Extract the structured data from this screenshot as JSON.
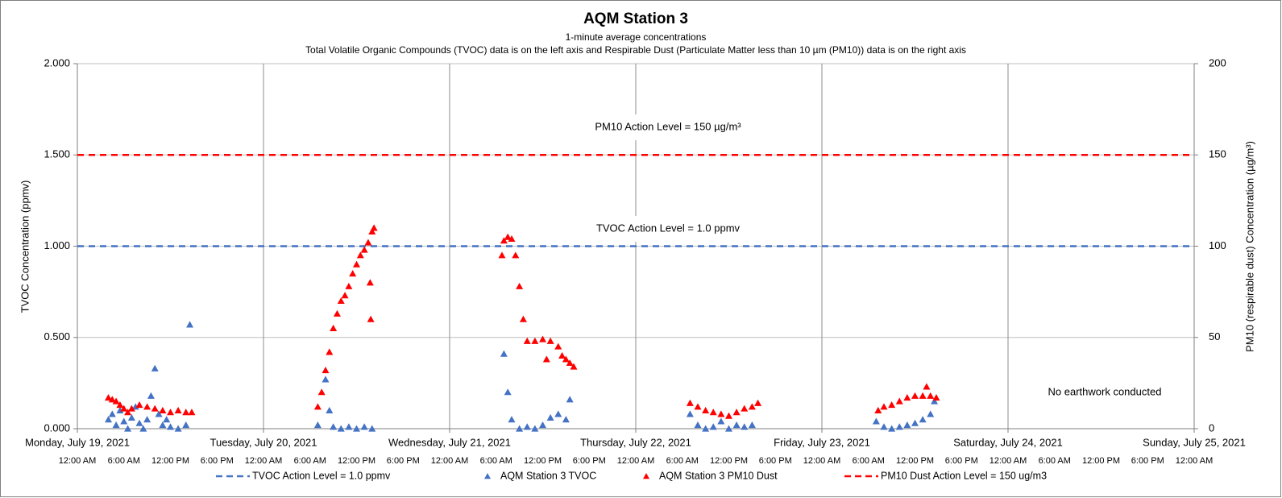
{
  "chart_data": {
    "type": "scatter",
    "title": "AQM Station 3",
    "subtitle": "1-minute average concentrations",
    "subtitle2": "Total Volatile Organic Compounds (TVOC) data is on the left axis and Respirable Dust (Particulate Matter less than 10 µm (PM10)) data is on the right axis",
    "y_label": "TVOC Concentration (ppmv)",
    "y2_label": "PM10 (respirable dust) Concentration (µg/m³)",
    "annotations": [
      "PM10 Action Level = 150 µg/m³",
      "TVOC Action Level = 1.0 ppmv",
      "No earthwork conducted"
    ],
    "xlim": [
      "2021-07-19T00:00",
      "2021-07-25T00:00"
    ],
    "xticks": [
      {
        "value": "2021-07-19T00:00",
        "label": "Monday, July 19, 2021"
      },
      {
        "value": "2021-07-20T00:00",
        "label": "Tuesday, July 20, 2021"
      },
      {
        "value": "2021-07-21T00:00",
        "label": "Wednesday, July 21, 2021"
      },
      {
        "value": "2021-07-22T00:00",
        "label": "Thursday, July 22, 2021"
      },
      {
        "value": "2021-07-23T00:00",
        "label": "Friday, July 23, 2021"
      },
      {
        "value": "2021-07-24T00:00",
        "label": "Saturday, July 24, 2021"
      },
      {
        "value": "2021-07-25T00:00",
        "label": "Sunday, July 25, 2021"
      }
    ],
    "xticks_minor": [
      {
        "value": "2021-07-19T00:00",
        "label": "12:00 AM"
      },
      {
        "value": "2021-07-19T06:00",
        "label": "6:00 AM"
      },
      {
        "value": "2021-07-19T12:00",
        "label": "12:00 PM"
      },
      {
        "value": "2021-07-19T18:00",
        "label": "6:00 PM"
      },
      {
        "value": "2021-07-20T00:00",
        "label": "12:00 AM"
      },
      {
        "value": "2021-07-20T06:00",
        "label": "6:00 AM"
      },
      {
        "value": "2021-07-20T12:00",
        "label": "12:00 PM"
      },
      {
        "value": "2021-07-20T18:00",
        "label": "6:00 PM"
      },
      {
        "value": "2021-07-21T00:00",
        "label": "12:00 AM"
      },
      {
        "value": "2021-07-21T06:00",
        "label": "6:00 AM"
      },
      {
        "value": "2021-07-21T12:00",
        "label": "12:00 PM"
      },
      {
        "value": "2021-07-21T18:00",
        "label": "6:00 PM"
      },
      {
        "value": "2021-07-22T00:00",
        "label": "12:00 AM"
      },
      {
        "value": "2021-07-22T06:00",
        "label": "6:00 AM"
      },
      {
        "value": "2021-07-22T12:00",
        "label": "12:00 PM"
      },
      {
        "value": "2021-07-22T18:00",
        "label": "6:00 PM"
      },
      {
        "value": "2021-07-23T00:00",
        "label": "12:00 AM"
      },
      {
        "value": "2021-07-23T06:00",
        "label": "6:00 AM"
      },
      {
        "value": "2021-07-23T12:00",
        "label": "12:00 PM"
      },
      {
        "value": "2021-07-23T18:00",
        "label": "6:00 PM"
      },
      {
        "value": "2021-07-24T00:00",
        "label": "12:00 AM"
      },
      {
        "value": "2021-07-24T06:00",
        "label": "6:00 AM"
      },
      {
        "value": "2021-07-24T12:00",
        "label": "12:00 PM"
      },
      {
        "value": "2021-07-24T18:00",
        "label": "6:00 PM"
      },
      {
        "value": "2021-07-25T00:00",
        "label": "12:00 AM"
      }
    ],
    "ylim": [
      0,
      2
    ],
    "yticks": [
      {
        "value": 0,
        "label": "0.000"
      },
      {
        "value": 0.5,
        "label": "0.500"
      },
      {
        "value": 1,
        "label": "1.000"
      },
      {
        "value": 1.5,
        "label": "1.500"
      },
      {
        "value": 2,
        "label": "2.000"
      }
    ],
    "y2lim": [
      0,
      200
    ],
    "y2ticks": [
      0,
      50,
      100,
      150,
      200
    ],
    "grid": true,
    "legend": "bottom",
    "series": [
      {
        "name": "TVOC Action Level = 1.0 ppmv",
        "kind": "hline",
        "color": "#4472c4",
        "value": 1.0
      },
      {
        "name": "AQM Station 3 TVOC",
        "color": "#4472c4",
        "x": [
          "2021-07-19T04:00",
          "2021-07-19T04:30",
          "2021-07-19T05:00",
          "2021-07-19T05:30",
          "2021-07-19T06:00",
          "2021-07-19T06:30",
          "2021-07-19T07:00",
          "2021-07-19T07:30",
          "2021-07-19T08:00",
          "2021-07-19T08:30",
          "2021-07-19T09:00",
          "2021-07-19T09:30",
          "2021-07-19T10:00",
          "2021-07-19T10:30",
          "2021-07-19T11:00",
          "2021-07-19T11:30",
          "2021-07-19T12:00",
          "2021-07-19T13:00",
          "2021-07-19T14:00",
          "2021-07-19T14:30",
          "2021-07-20T07:00",
          "2021-07-20T08:00",
          "2021-07-20T08:30",
          "2021-07-20T09:00",
          "2021-07-20T10:00",
          "2021-07-20T11:00",
          "2021-07-20T12:00",
          "2021-07-20T13:00",
          "2021-07-20T14:00",
          "2021-07-21T07:00",
          "2021-07-21T07:30",
          "2021-07-21T08:00",
          "2021-07-21T09:00",
          "2021-07-21T10:00",
          "2021-07-21T11:00",
          "2021-07-21T12:00",
          "2021-07-21T13:00",
          "2021-07-21T14:00",
          "2021-07-21T15:00",
          "2021-07-21T15:30",
          "2021-07-22T07:00",
          "2021-07-22T08:00",
          "2021-07-22T09:00",
          "2021-07-22T10:00",
          "2021-07-22T11:00",
          "2021-07-22T12:00",
          "2021-07-22T13:00",
          "2021-07-22T14:00",
          "2021-07-22T15:00",
          "2021-07-23T07:00",
          "2021-07-23T08:00",
          "2021-07-23T09:00",
          "2021-07-23T10:00",
          "2021-07-23T11:00",
          "2021-07-23T12:00",
          "2021-07-23T13:00",
          "2021-07-23T14:00",
          "2021-07-23T14:30"
        ],
        "values": [
          0.05,
          0.08,
          0.02,
          0.1,
          0.04,
          0.0,
          0.06,
          0.12,
          0.03,
          0.0,
          0.05,
          0.18,
          0.33,
          0.08,
          0.02,
          0.05,
          0.01,
          0.0,
          0.02,
          0.57,
          0.02,
          0.27,
          0.1,
          0.01,
          0.0,
          0.01,
          0.0,
          0.01,
          0.0,
          0.41,
          0.2,
          0.05,
          0.0,
          0.01,
          0.0,
          0.02,
          0.06,
          0.08,
          0.05,
          0.16,
          0.08,
          0.02,
          0.0,
          0.01,
          0.04,
          0.0,
          0.02,
          0.01,
          0.02,
          0.04,
          0.01,
          0.0,
          0.01,
          0.02,
          0.03,
          0.05,
          0.08,
          0.15
        ]
      },
      {
        "name": "AQM Station 3 PM10 Dust",
        "color": "#ff0000",
        "axis": "y2",
        "x": [
          "2021-07-19T04:00",
          "2021-07-19T04:30",
          "2021-07-19T05:00",
          "2021-07-19T05:30",
          "2021-07-19T06:00",
          "2021-07-19T06:30",
          "2021-07-19T07:00",
          "2021-07-19T08:00",
          "2021-07-19T09:00",
          "2021-07-19T10:00",
          "2021-07-19T11:00",
          "2021-07-19T12:00",
          "2021-07-19T13:00",
          "2021-07-19T14:00",
          "2021-07-19T14:45",
          "2021-07-20T07:00",
          "2021-07-20T07:30",
          "2021-07-20T08:00",
          "2021-07-20T08:30",
          "2021-07-20T09:00",
          "2021-07-20T09:30",
          "2021-07-20T10:00",
          "2021-07-20T10:30",
          "2021-07-20T11:00",
          "2021-07-20T11:30",
          "2021-07-20T12:00",
          "2021-07-20T12:30",
          "2021-07-20T13:00",
          "2021-07-20T13:30",
          "2021-07-20T13:45",
          "2021-07-20T13:50",
          "2021-07-20T14:00",
          "2021-07-20T14:15",
          "2021-07-21T06:45",
          "2021-07-21T07:00",
          "2021-07-21T07:30",
          "2021-07-21T08:00",
          "2021-07-21T08:30",
          "2021-07-21T09:00",
          "2021-07-21T09:30",
          "2021-07-21T10:00",
          "2021-07-21T11:00",
          "2021-07-21T12:00",
          "2021-07-21T12:30",
          "2021-07-21T13:00",
          "2021-07-21T14:00",
          "2021-07-21T14:30",
          "2021-07-21T15:00",
          "2021-07-21T15:30",
          "2021-07-21T16:00",
          "2021-07-22T07:00",
          "2021-07-22T08:00",
          "2021-07-22T09:00",
          "2021-07-22T10:00",
          "2021-07-22T11:00",
          "2021-07-22T12:00",
          "2021-07-22T13:00",
          "2021-07-22T14:00",
          "2021-07-22T15:00",
          "2021-07-22T15:45",
          "2021-07-23T07:15",
          "2021-07-23T08:00",
          "2021-07-23T09:00",
          "2021-07-23T10:00",
          "2021-07-23T11:00",
          "2021-07-23T12:00",
          "2021-07-23T13:00",
          "2021-07-23T13:30",
          "2021-07-23T14:00",
          "2021-07-23T14:45"
        ],
        "values": [
          17,
          16,
          15,
          13,
          11,
          9,
          11,
          13,
          12,
          11,
          10,
          9,
          10,
          9,
          9,
          12,
          20,
          32,
          42,
          55,
          63,
          70,
          73,
          78,
          85,
          90,
          95,
          98,
          102,
          80,
          60,
          108,
          110,
          95,
          103,
          105,
          104,
          95,
          78,
          60,
          48,
          48,
          49,
          38,
          48,
          45,
          40,
          38,
          36,
          34,
          14,
          12,
          10,
          9,
          8,
          7,
          9,
          11,
          12,
          14,
          10,
          12,
          13,
          15,
          17,
          18,
          18,
          23,
          18,
          17
        ]
      },
      {
        "name": "PM10 Dust Action Level = 150 ug/m3",
        "kind": "hline",
        "color": "#ff0000",
        "axis": "y2",
        "value": 150
      }
    ]
  }
}
